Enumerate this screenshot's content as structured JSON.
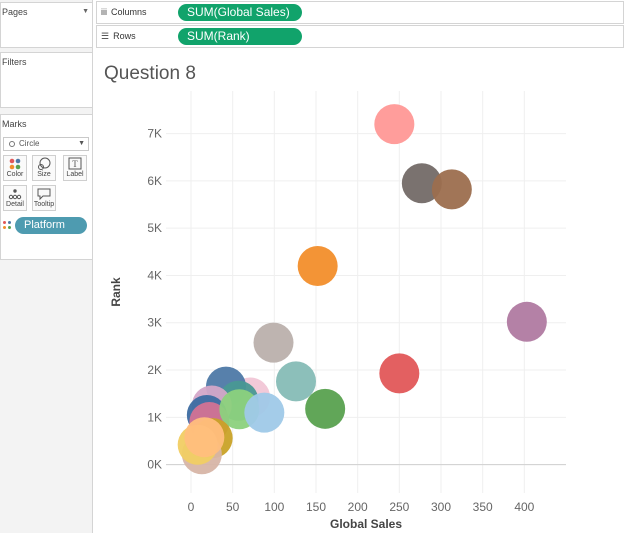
{
  "left": {
    "pages_title": "Pages",
    "filters_title": "Filters",
    "marks_title": "Marks",
    "mark_type": "Circle",
    "buttons": [
      {
        "label": "Color",
        "icon": "color-dots-icon"
      },
      {
        "label": "Size",
        "icon": "size-circles-icon"
      },
      {
        "label": "Label",
        "icon": "label-text-icon"
      },
      {
        "label": "Detail",
        "icon": "detail-dots-icon"
      },
      {
        "label": "Tooltip",
        "icon": "tooltip-bubble-icon"
      }
    ],
    "color_pill": "Platform"
  },
  "shelves": {
    "columns_label": "Columns",
    "columns_pill": "SUM(Global Sales)",
    "rows_label": "Rows",
    "rows_pill": "SUM(Rank)"
  },
  "view": {
    "title": "Question 8"
  },
  "chart_data": {
    "type": "scatter",
    "xlabel": "Global Sales",
    "ylabel": "Rank",
    "xlim": [
      -30,
      450
    ],
    "ylim": [
      -600,
      7900
    ],
    "xticks": [
      0,
      50,
      100,
      150,
      200,
      250,
      300,
      350,
      400
    ],
    "yticks": [
      0,
      1000,
      2000,
      3000,
      4000,
      5000,
      6000,
      7000
    ],
    "ytick_labels": [
      "0K",
      "1K",
      "2K",
      "3K",
      "4K",
      "5K",
      "6K",
      "7K"
    ],
    "grid": true,
    "points": [
      {
        "x": 244,
        "y": 7200,
        "color": "#ff9896"
      },
      {
        "x": 277,
        "y": 5950,
        "color": "#736a67"
      },
      {
        "x": 313,
        "y": 5820,
        "color": "#9c6e4e"
      },
      {
        "x": 152,
        "y": 4200,
        "color": "#f28e2b"
      },
      {
        "x": 403,
        "y": 3020,
        "color": "#b07aa1"
      },
      {
        "x": 99,
        "y": 2580,
        "color": "#bab0ac"
      },
      {
        "x": 250,
        "y": 1930,
        "color": "#e15759"
      },
      {
        "x": 126,
        "y": 1760,
        "color": "#86bcb6"
      },
      {
        "x": 161,
        "y": 1180,
        "color": "#59a14f"
      },
      {
        "x": 71,
        "y": 1420,
        "color": "#f1c6d6"
      },
      {
        "x": 42,
        "y": 1650,
        "color": "#4e79a7"
      },
      {
        "x": 57,
        "y": 1350,
        "color": "#499894"
      },
      {
        "x": 25,
        "y": 1250,
        "color": "#d4a6c8"
      },
      {
        "x": 19,
        "y": 1050,
        "color": "#3c6ba1"
      },
      {
        "x": 22,
        "y": 900,
        "color": "#d37295"
      },
      {
        "x": 58,
        "y": 1170,
        "color": "#8cd17d"
      },
      {
        "x": 88,
        "y": 1100,
        "color": "#9fc9e8"
      },
      {
        "x": 26,
        "y": 560,
        "color": "#c9a227"
      },
      {
        "x": 13,
        "y": 220,
        "color": "#d7b5a6"
      },
      {
        "x": 8,
        "y": 420,
        "color": "#f1ce63"
      },
      {
        "x": 16,
        "y": 580,
        "color": "#ffbe7d"
      }
    ]
  }
}
